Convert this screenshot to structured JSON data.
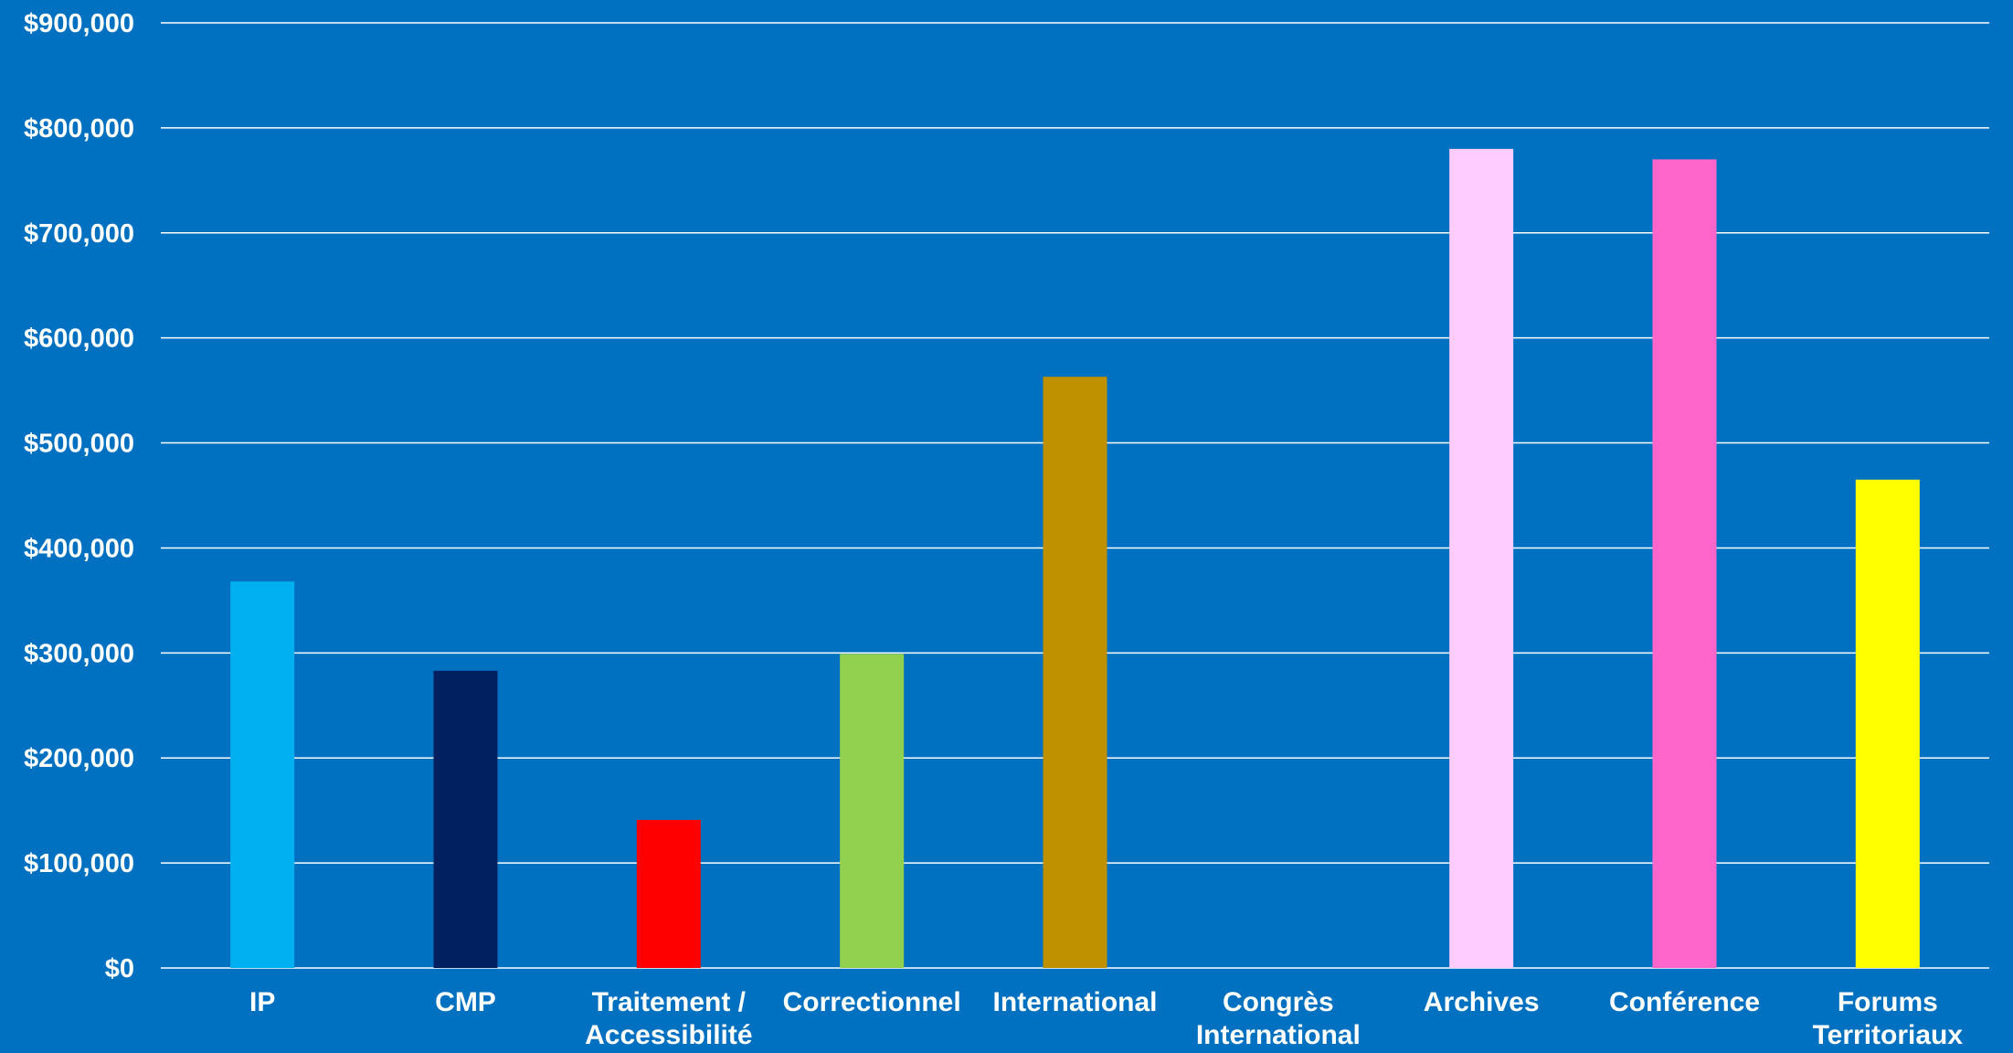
{
  "chart_data": {
    "type": "bar",
    "title": "",
    "xlabel": "",
    "ylabel": "",
    "ylim": [
      0,
      900000
    ],
    "y_ticks": [
      {
        "value": 0,
        "label": "$0"
      },
      {
        "value": 100000,
        "label": "$100,000"
      },
      {
        "value": 200000,
        "label": "$200,000"
      },
      {
        "value": 300000,
        "label": "$300,000"
      },
      {
        "value": 400000,
        "label": "$400,000"
      },
      {
        "value": 500000,
        "label": "$500,000"
      },
      {
        "value": 600000,
        "label": "$600,000"
      },
      {
        "value": 700000,
        "label": "$700,000"
      },
      {
        "value": 800000,
        "label": "$800,000"
      },
      {
        "value": 900000,
        "label": "$900,000"
      }
    ],
    "grid": true,
    "legend": "none",
    "categories": [
      "IP",
      "CMP",
      "Traitement / Accessibilité",
      "Correctionnel",
      "International",
      "Congrès International",
      "Archives",
      "Conférence",
      "Forums Territoriaux"
    ],
    "category_lines": [
      [
        "IP"
      ],
      [
        "CMP"
      ],
      [
        "Traitement /",
        "Accessibilité"
      ],
      [
        "Correctionnel"
      ],
      [
        "International"
      ],
      [
        "Congrès",
        "International"
      ],
      [
        "Archives"
      ],
      [
        "Conférence"
      ],
      [
        "Forums",
        "Territoriaux"
      ]
    ],
    "values": [
      368000,
      283000,
      141000,
      299000,
      563000,
      0,
      780000,
      770000,
      465000
    ],
    "colors": [
      "#00B0F0",
      "#002060",
      "#FF0000",
      "#92D050",
      "#BF9000",
      "#0070C0",
      "#FFCCFF",
      "#FF66CC",
      "#FFFF00"
    ],
    "background": "#0070C0",
    "text_color": "#FFFFFF"
  }
}
